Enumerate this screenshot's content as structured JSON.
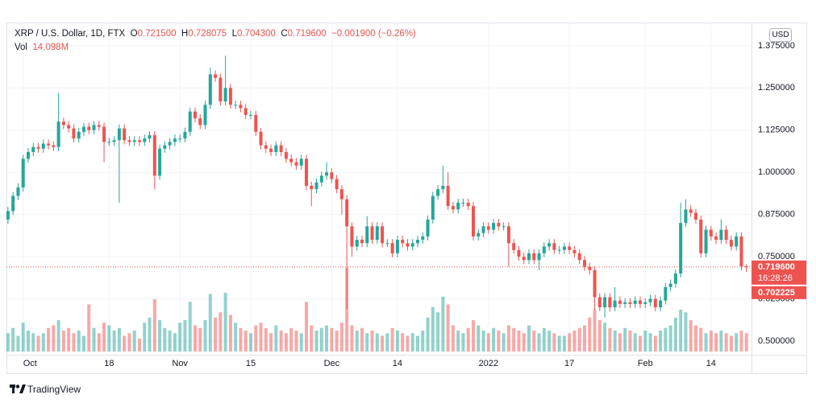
{
  "header": {
    "symbol": "XRP / U.S. Dollar, 1D, FTX",
    "o_label": "O",
    "o": "0.721500",
    "h_label": "H",
    "h": "0.728075",
    "l_label": "L",
    "l": "0.704300",
    "c_label": "C",
    "c": "0.719600",
    "change": "−0.001900 (−0.26%)",
    "vol_label": "Vol",
    "vol": "14.098M"
  },
  "currency_button": "USD",
  "price_tag": {
    "price": "0.719600",
    "countdown": "16:28:26",
    "other": "0.702225"
  },
  "footer": {
    "brand": "TradingView"
  },
  "chart_data": {
    "type": "candlestick",
    "colors": {
      "up": "#26a69a",
      "down": "#ef5350",
      "up_volume": "#26a69a80",
      "down_volume": "#ef535080"
    },
    "grid": true,
    "xlim": [
      -0.3,
      147
    ],
    "xticks": [
      {
        "value": 3,
        "label": "Oct"
      },
      {
        "value": 20,
        "label": "18"
      },
      {
        "value": 34,
        "label": "Nov"
      },
      {
        "value": 48,
        "label": "15"
      },
      {
        "value": 64,
        "label": "Dec"
      },
      {
        "value": 77,
        "label": "14"
      },
      {
        "value": 95,
        "label": "2022"
      },
      {
        "value": 111,
        "label": "17"
      },
      {
        "value": 126,
        "label": "Feb"
      },
      {
        "value": 139,
        "label": "14"
      }
    ],
    "ylim": [
      0.469,
      1.439
    ],
    "yticks": [
      {
        "value": 0.5,
        "label": "0.500000"
      },
      {
        "value": 0.625,
        "label": "0.625000"
      },
      {
        "value": 0.75,
        "label": "0.750000"
      },
      {
        "value": 0.875,
        "label": "0.875000"
      },
      {
        "value": 1.0,
        "label": "1.000000"
      },
      {
        "value": 1.125,
        "label": "1.125000"
      },
      {
        "value": 1.25,
        "label": "1.250000"
      },
      {
        "value": 1.375,
        "label": "1.375000"
      }
    ],
    "last_price": 0.7196,
    "open": [
      0.86,
      0.885,
      0.93,
      0.955,
      1.04,
      1.06,
      1.075,
      1.07,
      1.085,
      1.08,
      1.075,
      1.15,
      1.14,
      1.13,
      1.1,
      1.12,
      1.135,
      1.125,
      1.14,
      1.135,
      1.09,
      1.09,
      1.095,
      1.13,
      1.095,
      1.09,
      1.095,
      1.09,
      1.1,
      1.11,
      0.99,
      1.07,
      1.08,
      1.09,
      1.1,
      1.1,
      1.12,
      1.18,
      1.16,
      1.14,
      1.2,
      1.29,
      1.28,
      1.21,
      1.25,
      1.2,
      1.2,
      1.19,
      1.17,
      1.17,
      1.12,
      1.08,
      1.07,
      1.06,
      1.08,
      1.06,
      1.04,
      1.03,
      1.02,
      1.04,
      0.96,
      0.95,
      0.97,
      0.99,
      1.0,
      0.98,
      0.95,
      0.92,
      0.84,
      0.78,
      0.8,
      0.79,
      0.84,
      0.8,
      0.84,
      0.79,
      0.79,
      0.76,
      0.8,
      0.79,
      0.78,
      0.79,
      0.8,
      0.81,
      0.86,
      0.93,
      0.95,
      0.96,
      0.9,
      0.89,
      0.91,
      0.91,
      0.9,
      0.81,
      0.82,
      0.84,
      0.83,
      0.85,
      0.84,
      0.84,
      0.79,
      0.77,
      0.75,
      0.74,
      0.76,
      0.74,
      0.76,
      0.78,
      0.79,
      0.77,
      0.77,
      0.78,
      0.77,
      0.76,
      0.74,
      0.72,
      0.71,
      0.63,
      0.6,
      0.63,
      0.6,
      0.62,
      0.61,
      0.615,
      0.61,
      0.62,
      0.61,
      0.615,
      0.625,
      0.6,
      0.62,
      0.66,
      0.67,
      0.7,
      0.85,
      0.89,
      0.88,
      0.86,
      0.76,
      0.83,
      0.81,
      0.8,
      0.83,
      0.8,
      0.78,
      0.81,
      0.7215
    ],
    "high": [
      0.897,
      0.942,
      0.967,
      1.052,
      1.072,
      1.087,
      1.087,
      1.097,
      1.097,
      1.092,
      1.235,
      1.162,
      1.152,
      1.142,
      1.132,
      1.147,
      1.147,
      1.152,
      1.152,
      1.147,
      1.102,
      1.107,
      1.142,
      1.142,
      1.107,
      1.107,
      1.107,
      1.112,
      1.122,
      1.122,
      1.082,
      1.092,
      1.102,
      1.112,
      1.112,
      1.132,
      1.192,
      1.192,
      1.172,
      1.212,
      1.31,
      1.302,
      1.292,
      1.345,
      1.262,
      1.212,
      1.212,
      1.202,
      1.182,
      1.182,
      1.132,
      1.092,
      1.082,
      1.092,
      1.092,
      1.072,
      1.052,
      1.042,
      1.052,
      1.052,
      0.972,
      0.982,
      1.002,
      1.03,
      1.012,
      0.992,
      0.962,
      0.932,
      0.852,
      0.812,
      0.812,
      0.87,
      0.852,
      0.852,
      0.852,
      0.802,
      0.802,
      0.812,
      0.812,
      0.802,
      0.802,
      0.812,
      0.822,
      0.872,
      0.942,
      0.962,
      1.02,
      1.0,
      0.912,
      0.922,
      0.922,
      0.922,
      0.912,
      0.832,
      0.852,
      0.852,
      0.862,
      0.862,
      0.852,
      0.852,
      0.802,
      0.782,
      0.762,
      0.772,
      0.772,
      0.772,
      0.792,
      0.802,
      0.802,
      0.782,
      0.792,
      0.792,
      0.782,
      0.772,
      0.752,
      0.732,
      0.722,
      0.642,
      0.642,
      0.642,
      0.66,
      0.632,
      0.627,
      0.627,
      0.632,
      0.632,
      0.627,
      0.637,
      0.637,
      0.632,
      0.672,
      0.682,
      0.712,
      0.91,
      0.92,
      0.902,
      0.892,
      0.872,
      0.842,
      0.842,
      0.822,
      0.86,
      0.842,
      0.812,
      0.822,
      0.822,
      0.728075
    ],
    "low": [
      0.848,
      0.873,
      0.918,
      0.943,
      1.028,
      1.048,
      1.058,
      1.058,
      1.068,
      1.063,
      1.063,
      1.128,
      1.118,
      1.088,
      1.088,
      1.108,
      1.113,
      1.113,
      1.123,
      1.03,
      1.078,
      1.078,
      0.91,
      1.083,
      1.078,
      1.078,
      1.078,
      1.078,
      1.088,
      0.95,
      0.978,
      1.058,
      1.068,
      1.078,
      1.088,
      1.088,
      1.108,
      1.148,
      1.128,
      1.128,
      1.188,
      1.268,
      1.198,
      1.198,
      1.188,
      1.188,
      1.178,
      1.158,
      1.158,
      1.108,
      1.068,
      1.058,
      1.048,
      1.048,
      1.048,
      1.028,
      1.018,
      1.008,
      1.008,
      0.948,
      0.9,
      0.938,
      0.958,
      0.978,
      0.968,
      0.938,
      0.875,
      0.595,
      0.75,
      0.768,
      0.778,
      0.778,
      0.788,
      0.788,
      0.778,
      0.778,
      0.748,
      0.748,
      0.778,
      0.768,
      0.768,
      0.778,
      0.788,
      0.798,
      0.848,
      0.918,
      0.938,
      0.888,
      0.878,
      0.878,
      0.898,
      0.888,
      0.798,
      0.798,
      0.808,
      0.818,
      0.818,
      0.828,
      0.828,
      0.72,
      0.758,
      0.738,
      0.728,
      0.728,
      0.728,
      0.71,
      0.748,
      0.768,
      0.758,
      0.758,
      0.758,
      0.758,
      0.748,
      0.728,
      0.708,
      0.698,
      0.59,
      0.588,
      0.57,
      0.588,
      0.588,
      0.598,
      0.598,
      0.598,
      0.598,
      0.598,
      0.598,
      0.603,
      0.588,
      0.588,
      0.608,
      0.648,
      0.658,
      0.688,
      0.838,
      0.868,
      0.848,
      0.748,
      0.748,
      0.798,
      0.788,
      0.788,
      0.788,
      0.768,
      0.768,
      0.71,
      0.7043
    ],
    "close": [
      0.885,
      0.93,
      0.955,
      1.04,
      1.06,
      1.075,
      1.07,
      1.085,
      1.08,
      1.075,
      1.15,
      1.14,
      1.13,
      1.1,
      1.12,
      1.135,
      1.125,
      1.14,
      1.135,
      1.09,
      1.09,
      1.095,
      1.13,
      1.095,
      1.09,
      1.095,
      1.09,
      1.1,
      1.11,
      0.99,
      1.07,
      1.08,
      1.09,
      1.1,
      1.1,
      1.12,
      1.18,
      1.16,
      1.14,
      1.2,
      1.29,
      1.28,
      1.21,
      1.25,
      1.2,
      1.2,
      1.19,
      1.17,
      1.17,
      1.12,
      1.08,
      1.07,
      1.06,
      1.08,
      1.06,
      1.04,
      1.03,
      1.02,
      1.04,
      0.96,
      0.95,
      0.97,
      0.99,
      1.0,
      0.98,
      0.95,
      0.92,
      0.84,
      0.78,
      0.8,
      0.79,
      0.84,
      0.8,
      0.84,
      0.79,
      0.79,
      0.76,
      0.8,
      0.79,
      0.78,
      0.79,
      0.8,
      0.81,
      0.86,
      0.93,
      0.95,
      0.96,
      0.9,
      0.89,
      0.91,
      0.91,
      0.9,
      0.81,
      0.82,
      0.84,
      0.83,
      0.85,
      0.84,
      0.84,
      0.79,
      0.77,
      0.75,
      0.74,
      0.76,
      0.74,
      0.76,
      0.78,
      0.79,
      0.77,
      0.77,
      0.78,
      0.77,
      0.76,
      0.74,
      0.72,
      0.71,
      0.63,
      0.6,
      0.63,
      0.6,
      0.62,
      0.61,
      0.615,
      0.61,
      0.62,
      0.61,
      0.615,
      0.625,
      0.6,
      0.62,
      0.66,
      0.67,
      0.7,
      0.85,
      0.89,
      0.88,
      0.86,
      0.76,
      0.83,
      0.81,
      0.8,
      0.83,
      0.8,
      0.78,
      0.81,
      0.7215,
      0.7196
    ],
    "volume": [
      14,
      18,
      12,
      22,
      16,
      14,
      12,
      14,
      18,
      20,
      24,
      16,
      18,
      14,
      16,
      12,
      36,
      18,
      14,
      22,
      20,
      16,
      18,
      12,
      14,
      16,
      10,
      22,
      26,
      40,
      24,
      18,
      16,
      14,
      22,
      24,
      38,
      20,
      18,
      24,
      44,
      26,
      30,
      45,
      28,
      22,
      18,
      16,
      14,
      20,
      22,
      18,
      14,
      20,
      16,
      14,
      18,
      16,
      14,
      38,
      20,
      16,
      18,
      20,
      18,
      16,
      22,
      64,
      20,
      16,
      18,
      14,
      16,
      14,
      12,
      14,
      18,
      16,
      14,
      12,
      14,
      12,
      16,
      26,
      34,
      30,
      42,
      36,
      20,
      16,
      14,
      18,
      24,
      20,
      16,
      14,
      18,
      16,
      14,
      20,
      18,
      16,
      14,
      20,
      16,
      14,
      18,
      16,
      14,
      12,
      12,
      14,
      16,
      18,
      20,
      26,
      32,
      24,
      22,
      18,
      16,
      14,
      18,
      16,
      14,
      12,
      16,
      14,
      12,
      16,
      18,
      20,
      26,
      32,
      30,
      24,
      20,
      18,
      14,
      16,
      14,
      16,
      14,
      12,
      14,
      16,
      14.098
    ]
  }
}
